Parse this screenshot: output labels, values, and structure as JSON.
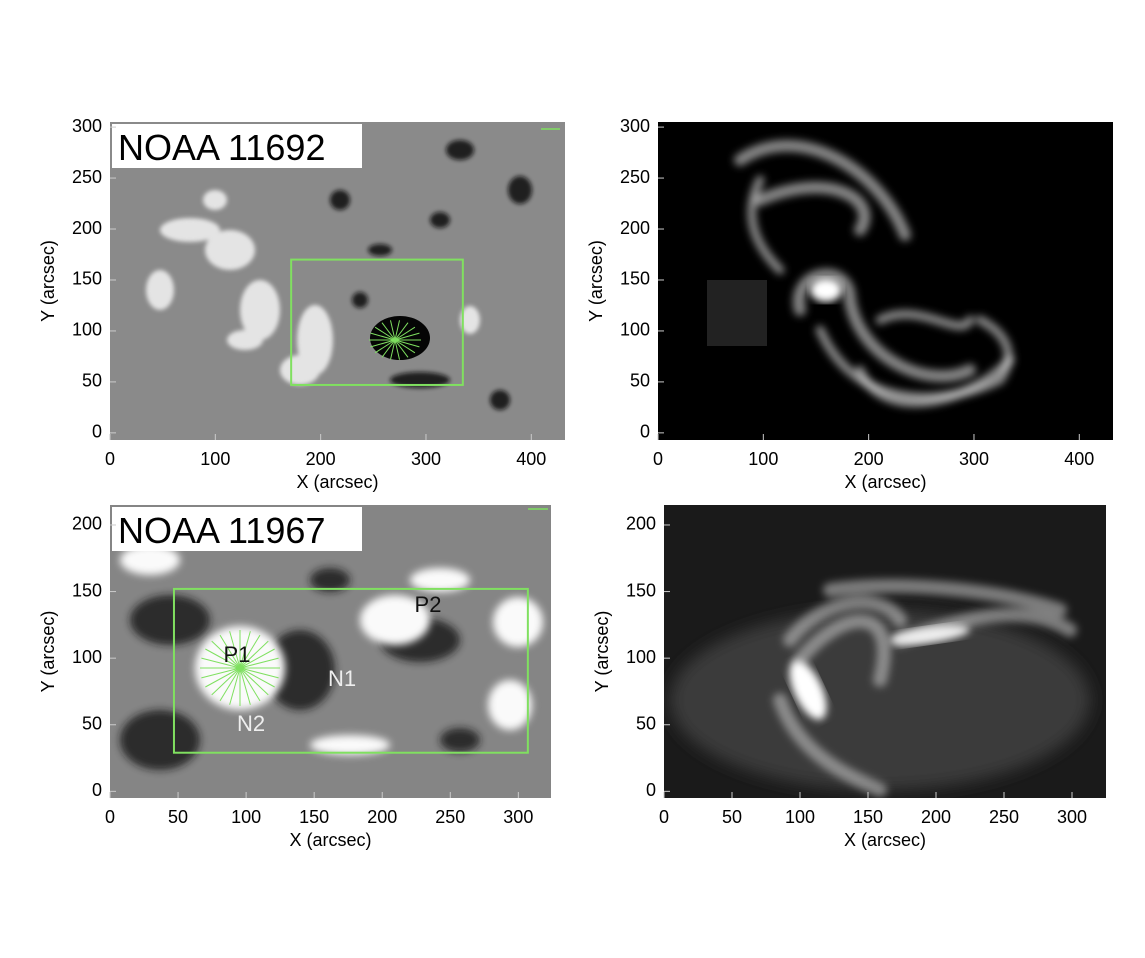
{
  "chart_data": [
    {
      "type": "image",
      "annotation": "NOAA 11692",
      "xlabel": "X (arcsec)",
      "ylabel": "Y (arcsec)",
      "xlim": [
        0,
        432
      ],
      "ylim": [
        -7,
        305
      ],
      "xticks": [
        0,
        100,
        200,
        300,
        400
      ],
      "yticks": [
        0,
        50,
        100,
        150,
        200,
        250,
        300
      ],
      "box": {
        "x": [
          172,
          335
        ],
        "y": [
          47,
          170
        ],
        "color": "#80e060"
      },
      "colormap": "magnetogram"
    },
    {
      "type": "image",
      "xlabel": "X (arcsec)",
      "ylabel": "Y (arcsec)",
      "xlim": [
        0,
        432
      ],
      "ylim": [
        -7,
        305
      ],
      "xticks": [
        0,
        100,
        200,
        300,
        400
      ],
      "yticks": [
        0,
        50,
        100,
        150,
        200,
        250,
        300
      ],
      "colormap": "euv"
    },
    {
      "type": "image",
      "annotation": "NOAA 11967",
      "xlabel": "X (arcsec)",
      "ylabel": "Y (arcsec)",
      "xlim": [
        0,
        324
      ],
      "ylim": [
        -5,
        215
      ],
      "xticks": [
        0,
        50,
        100,
        150,
        200,
        250,
        300
      ],
      "yticks": [
        0,
        50,
        100,
        150,
        200
      ],
      "box": {
        "x": [
          47,
          307
        ],
        "y": [
          29,
          152
        ],
        "color": "#80e060"
      },
      "labels": [
        "P1",
        "P2",
        "N1",
        "N2"
      ],
      "colormap": "magnetogram"
    },
    {
      "type": "image",
      "xlabel": "X (arcsec)",
      "ylabel": "Y (arcsec)",
      "xlim": [
        0,
        325
      ],
      "ylim": [
        -5,
        215
      ],
      "xticks": [
        0,
        50,
        100,
        150,
        200,
        250,
        300
      ],
      "yticks": [
        0,
        50,
        100,
        150,
        200
      ],
      "colormap": "euv"
    }
  ]
}
